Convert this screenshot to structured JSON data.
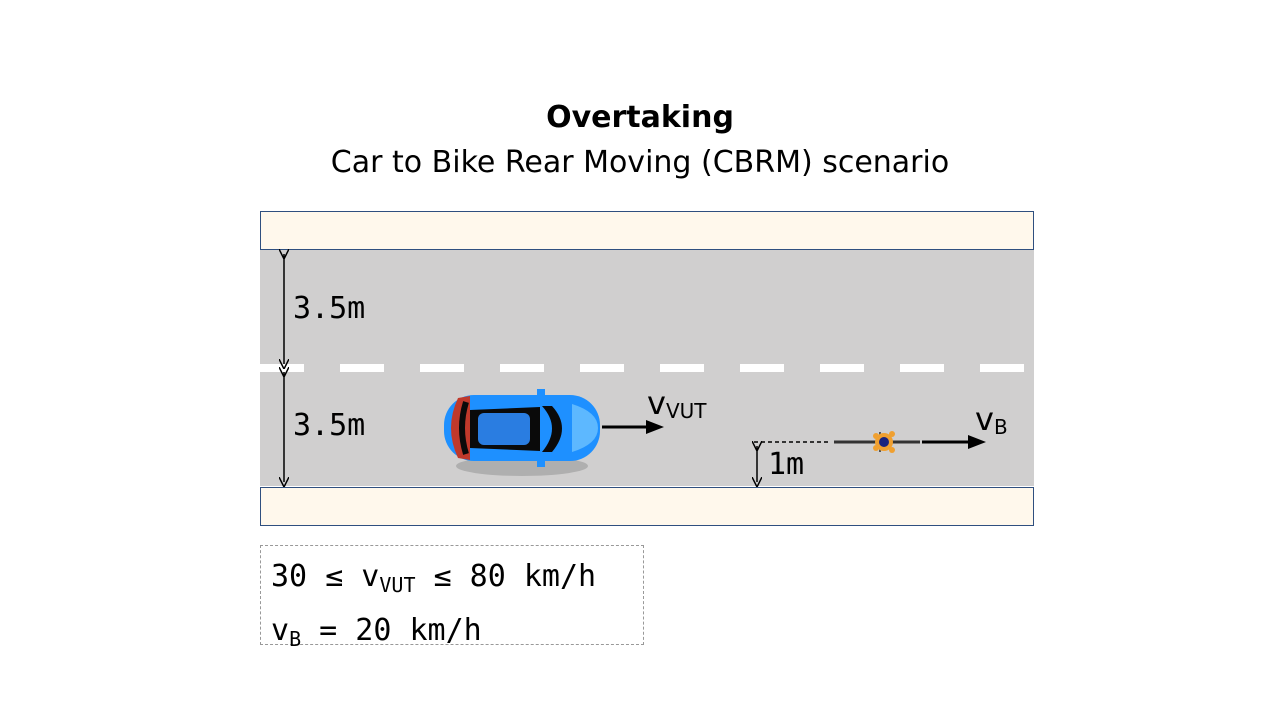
{
  "title": "Overtaking",
  "subtitle": "Car to Bike Rear Moving (CBRM) scenario",
  "labels": {
    "lane_width_top": "3.5m",
    "lane_width_bottom": "3.5m",
    "lateral_offset": "1m"
  },
  "velocity_labels": {
    "car": {
      "symbol": "v",
      "subscript": "VUT"
    },
    "bike": {
      "symbol": "v",
      "subscript": "B"
    }
  },
  "speed_box": {
    "line1": {
      "prefix": "30 ≤ v",
      "subscript": "VUT",
      "suffix": " ≤ 80 km/h"
    },
    "line2": {
      "prefix": "v",
      "subscript": "B",
      "suffix": " = 20 km/h"
    }
  },
  "colors": {
    "road": "#d0cfcf",
    "sidewalk": "#fff8ec",
    "car_body": "#1e90ff",
    "cyclist": "#f0a030"
  }
}
